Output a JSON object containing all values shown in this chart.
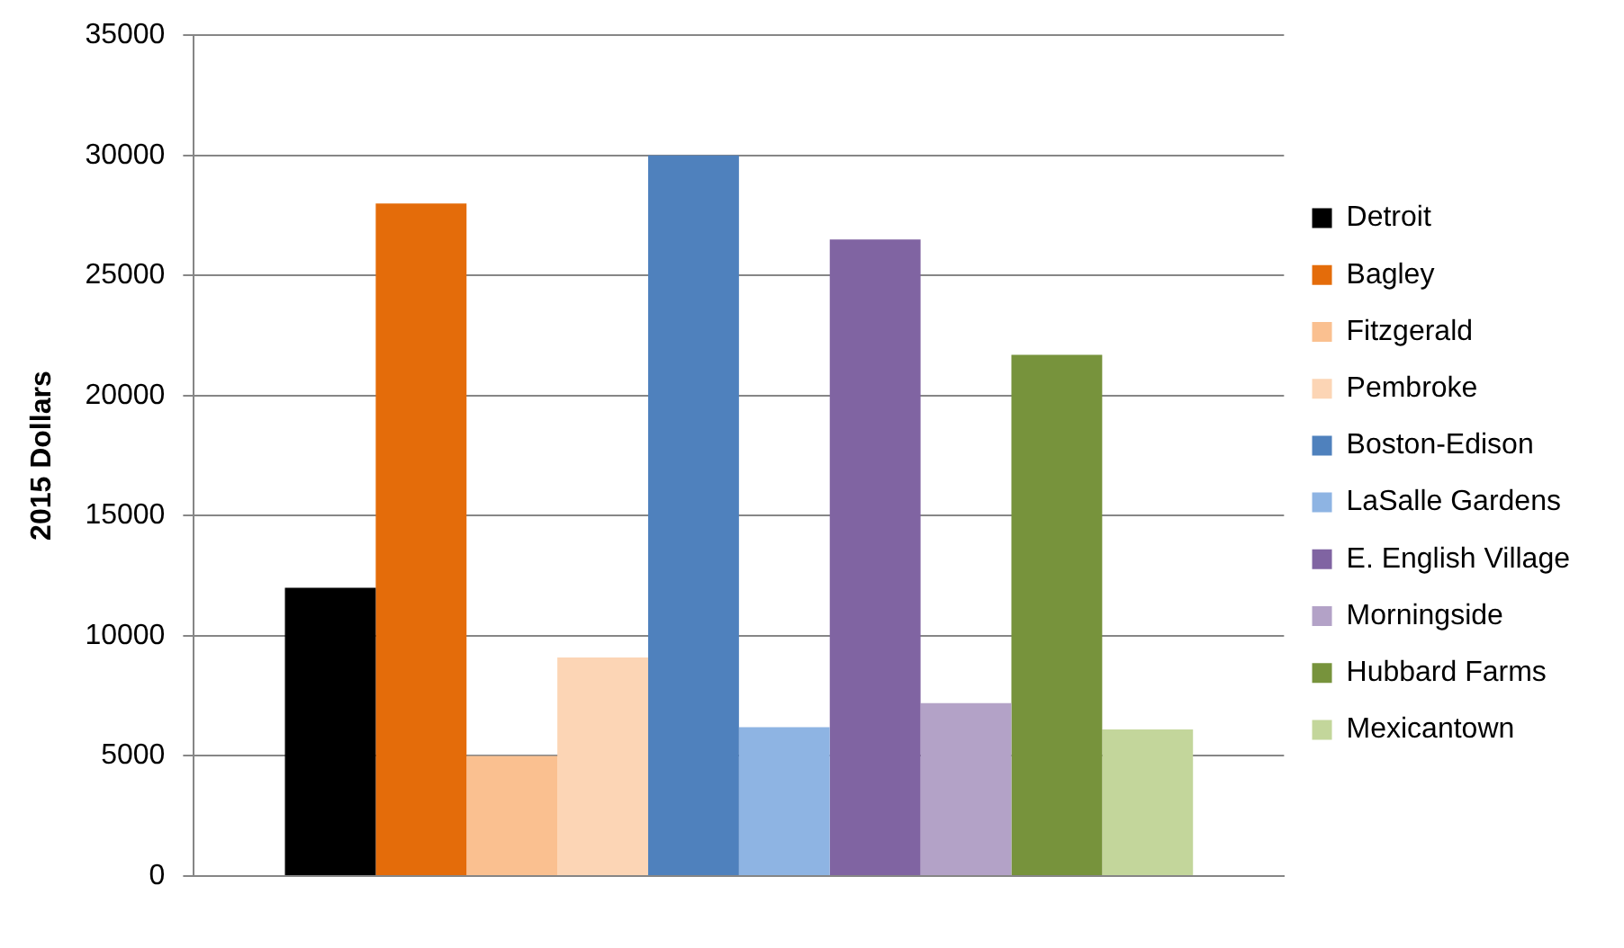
{
  "chart_data": {
    "type": "bar",
    "ylabel": "2015 Dollars",
    "categories": [
      null
    ],
    "series": [
      {
        "name": "Detroit",
        "color": "#000000",
        "values": [
          12000
        ]
      },
      {
        "name": "Bagley",
        "color": "#e46c0a",
        "values": [
          28000
        ]
      },
      {
        "name": "Fitzgerald",
        "color": "#fac090",
        "values": [
          5000
        ]
      },
      {
        "name": "Pembroke",
        "color": "#fcd5b5",
        "values": [
          9100
        ]
      },
      {
        "name": "Boston-Edison",
        "color": "#4f81bd",
        "values": [
          30000
        ]
      },
      {
        "name": "LaSalle Gardens",
        "color": "#8eb4e3",
        "values": [
          6200
        ]
      },
      {
        "name": "E. English Village",
        "color": "#8064a2",
        "values": [
          26500
        ]
      },
      {
        "name": "Morningside",
        "color": "#b3a2c7",
        "values": [
          7200
        ]
      },
      {
        "name": "Hubbard Farms",
        "color": "#77933c",
        "values": [
          21700
        ]
      },
      {
        "name": "Mexicantown",
        "color": "#c3d69b",
        "values": [
          6100
        ]
      }
    ],
    "ylim": [
      0,
      35000
    ],
    "yticks": [
      0,
      5000,
      10000,
      15000,
      20000,
      25000,
      30000,
      35000
    ],
    "grid": "y",
    "legend": "right"
  }
}
